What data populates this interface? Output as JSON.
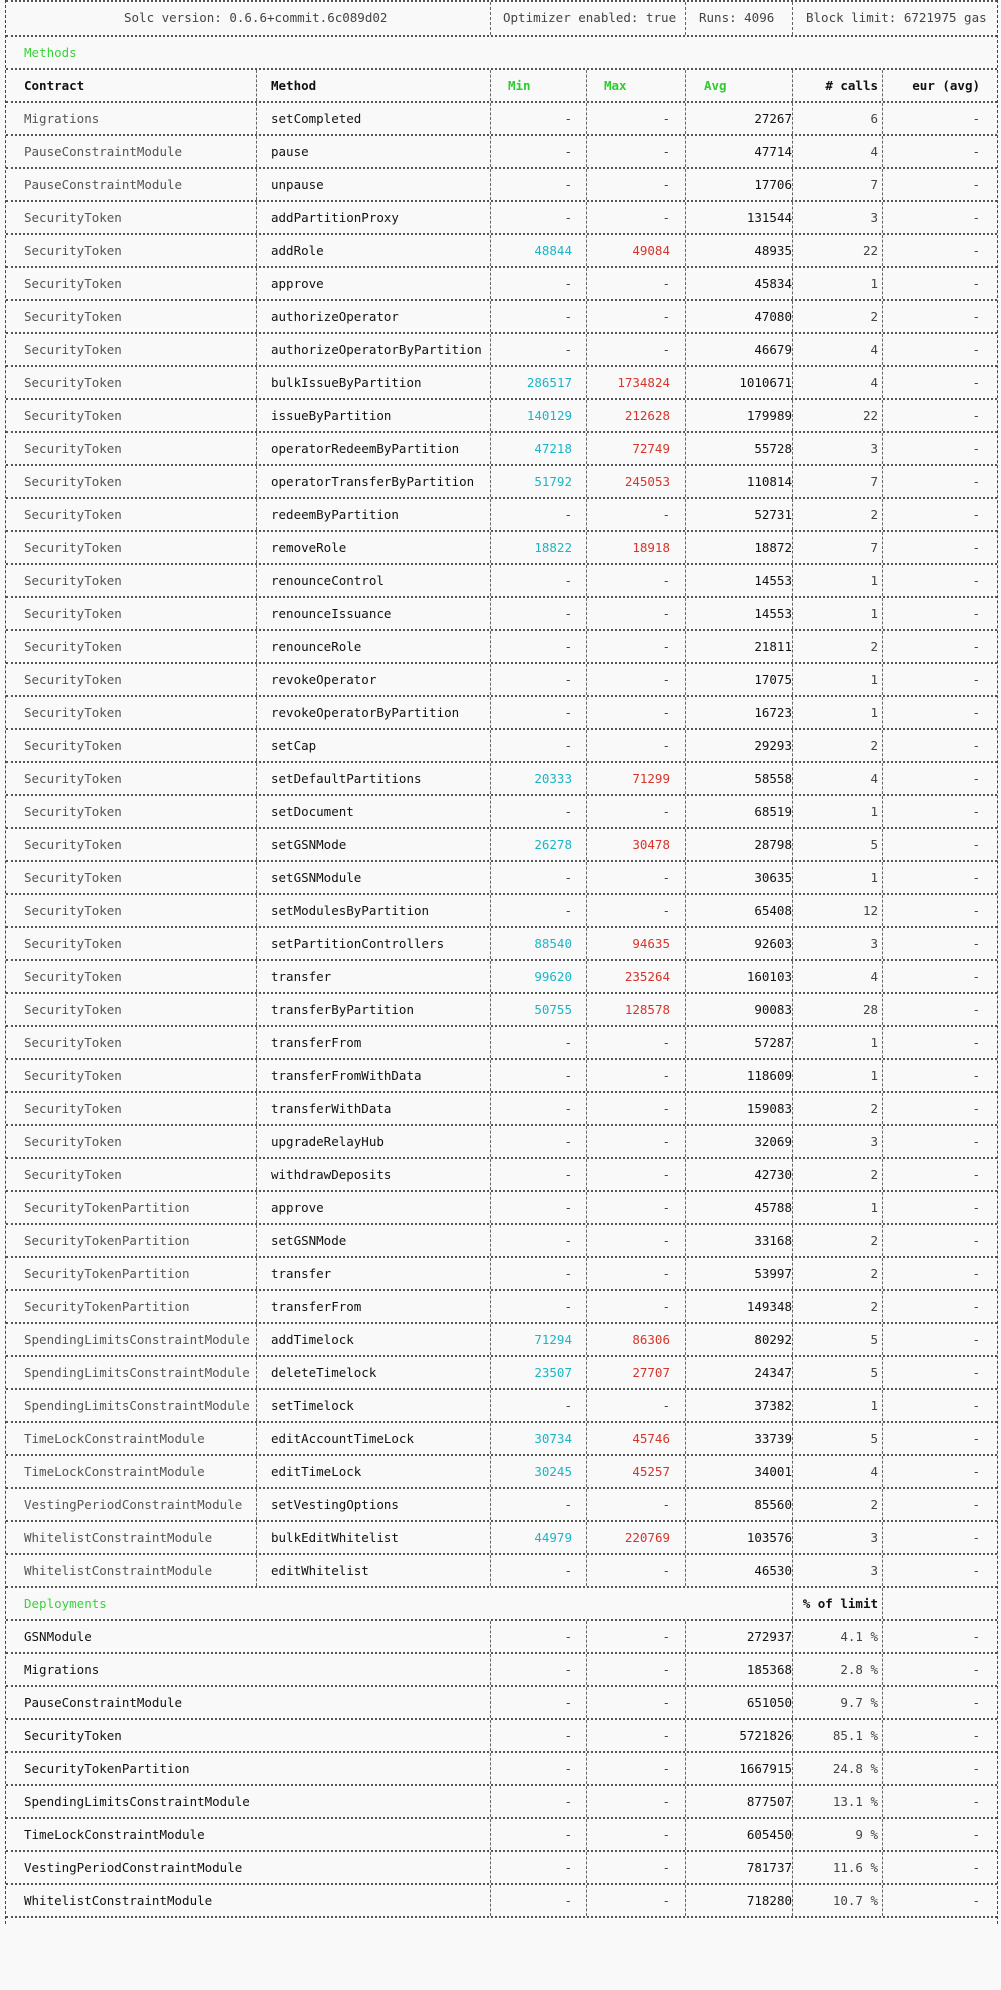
{
  "header": {
    "solc": "Solc version: 0.6.6+commit.6c089d02",
    "optimizer": "Optimizer enabled: true",
    "runs": "Runs: 4096",
    "block_limit": "Block limit: 6721975 gas"
  },
  "methods_section": {
    "title": "Methods"
  },
  "columns": {
    "contract": "Contract",
    "method": "Method",
    "min": "Min",
    "max": "Max",
    "avg": "Avg",
    "calls": "# calls",
    "eur": "eur (avg)"
  },
  "methods": [
    {
      "contract": "Migrations",
      "method": "setCompleted",
      "min": "-",
      "max": "-",
      "avg": "27267",
      "calls": "6",
      "eur": "-"
    },
    {
      "contract": "PauseConstraintModule",
      "method": "pause",
      "min": "-",
      "max": "-",
      "avg": "47714",
      "calls": "4",
      "eur": "-"
    },
    {
      "contract": "PauseConstraintModule",
      "method": "unpause",
      "min": "-",
      "max": "-",
      "avg": "17706",
      "calls": "7",
      "eur": "-"
    },
    {
      "contract": "SecurityToken",
      "method": "addPartitionProxy",
      "min": "-",
      "max": "-",
      "avg": "131544",
      "calls": "3",
      "eur": "-"
    },
    {
      "contract": "SecurityToken",
      "method": "addRole",
      "min": "48844",
      "max": "49084",
      "avg": "48935",
      "calls": "22",
      "eur": "-"
    },
    {
      "contract": "SecurityToken",
      "method": "approve",
      "min": "-",
      "max": "-",
      "avg": "45834",
      "calls": "1",
      "eur": "-"
    },
    {
      "contract": "SecurityToken",
      "method": "authorizeOperator",
      "min": "-",
      "max": "-",
      "avg": "47080",
      "calls": "2",
      "eur": "-"
    },
    {
      "contract": "SecurityToken",
      "method": "authorizeOperatorByPartition",
      "min": "-",
      "max": "-",
      "avg": "46679",
      "calls": "4",
      "eur": "-"
    },
    {
      "contract": "SecurityToken",
      "method": "bulkIssueByPartition",
      "min": "286517",
      "max": "1734824",
      "avg": "1010671",
      "calls": "4",
      "eur": "-"
    },
    {
      "contract": "SecurityToken",
      "method": "issueByPartition",
      "min": "140129",
      "max": "212628",
      "avg": "179989",
      "calls": "22",
      "eur": "-"
    },
    {
      "contract": "SecurityToken",
      "method": "operatorRedeemByPartition",
      "min": "47218",
      "max": "72749",
      "avg": "55728",
      "calls": "3",
      "eur": "-"
    },
    {
      "contract": "SecurityToken",
      "method": "operatorTransferByPartition",
      "min": "51792",
      "max": "245053",
      "avg": "110814",
      "calls": "7",
      "eur": "-"
    },
    {
      "contract": "SecurityToken",
      "method": "redeemByPartition",
      "min": "-",
      "max": "-",
      "avg": "52731",
      "calls": "2",
      "eur": "-"
    },
    {
      "contract": "SecurityToken",
      "method": "removeRole",
      "min": "18822",
      "max": "18918",
      "avg": "18872",
      "calls": "7",
      "eur": "-"
    },
    {
      "contract": "SecurityToken",
      "method": "renounceControl",
      "min": "-",
      "max": "-",
      "avg": "14553",
      "calls": "1",
      "eur": "-"
    },
    {
      "contract": "SecurityToken",
      "method": "renounceIssuance",
      "min": "-",
      "max": "-",
      "avg": "14553",
      "calls": "1",
      "eur": "-"
    },
    {
      "contract": "SecurityToken",
      "method": "renounceRole",
      "min": "-",
      "max": "-",
      "avg": "21811",
      "calls": "2",
      "eur": "-"
    },
    {
      "contract": "SecurityToken",
      "method": "revokeOperator",
      "min": "-",
      "max": "-",
      "avg": "17075",
      "calls": "1",
      "eur": "-"
    },
    {
      "contract": "SecurityToken",
      "method": "revokeOperatorByPartition",
      "min": "-",
      "max": "-",
      "avg": "16723",
      "calls": "1",
      "eur": "-"
    },
    {
      "contract": "SecurityToken",
      "method": "setCap",
      "min": "-",
      "max": "-",
      "avg": "29293",
      "calls": "2",
      "eur": "-"
    },
    {
      "contract": "SecurityToken",
      "method": "setDefaultPartitions",
      "min": "20333",
      "max": "71299",
      "avg": "58558",
      "calls": "4",
      "eur": "-"
    },
    {
      "contract": "SecurityToken",
      "method": "setDocument",
      "min": "-",
      "max": "-",
      "avg": "68519",
      "calls": "1",
      "eur": "-"
    },
    {
      "contract": "SecurityToken",
      "method": "setGSNMode",
      "min": "26278",
      "max": "30478",
      "avg": "28798",
      "calls": "5",
      "eur": "-"
    },
    {
      "contract": "SecurityToken",
      "method": "setGSNModule",
      "min": "-",
      "max": "-",
      "avg": "30635",
      "calls": "1",
      "eur": "-"
    },
    {
      "contract": "SecurityToken",
      "method": "setModulesByPartition",
      "min": "-",
      "max": "-",
      "avg": "65408",
      "calls": "12",
      "eur": "-"
    },
    {
      "contract": "SecurityToken",
      "method": "setPartitionControllers",
      "min": "88540",
      "max": "94635",
      "avg": "92603",
      "calls": "3",
      "eur": "-"
    },
    {
      "contract": "SecurityToken",
      "method": "transfer",
      "min": "99620",
      "max": "235264",
      "avg": "160103",
      "calls": "4",
      "eur": "-"
    },
    {
      "contract": "SecurityToken",
      "method": "transferByPartition",
      "min": "50755",
      "max": "128578",
      "avg": "90083",
      "calls": "28",
      "eur": "-"
    },
    {
      "contract": "SecurityToken",
      "method": "transferFrom",
      "min": "-",
      "max": "-",
      "avg": "57287",
      "calls": "1",
      "eur": "-"
    },
    {
      "contract": "SecurityToken",
      "method": "transferFromWithData",
      "min": "-",
      "max": "-",
      "avg": "118609",
      "calls": "1",
      "eur": "-"
    },
    {
      "contract": "SecurityToken",
      "method": "transferWithData",
      "min": "-",
      "max": "-",
      "avg": "159083",
      "calls": "2",
      "eur": "-"
    },
    {
      "contract": "SecurityToken",
      "method": "upgradeRelayHub",
      "min": "-",
      "max": "-",
      "avg": "32069",
      "calls": "3",
      "eur": "-"
    },
    {
      "contract": "SecurityToken",
      "method": "withdrawDeposits",
      "min": "-",
      "max": "-",
      "avg": "42730",
      "calls": "2",
      "eur": "-"
    },
    {
      "contract": "SecurityTokenPartition",
      "method": "approve",
      "min": "-",
      "max": "-",
      "avg": "45788",
      "calls": "1",
      "eur": "-"
    },
    {
      "contract": "SecurityTokenPartition",
      "method": "setGSNMode",
      "min": "-",
      "max": "-",
      "avg": "33168",
      "calls": "2",
      "eur": "-"
    },
    {
      "contract": "SecurityTokenPartition",
      "method": "transfer",
      "min": "-",
      "max": "-",
      "avg": "53997",
      "calls": "2",
      "eur": "-"
    },
    {
      "contract": "SecurityTokenPartition",
      "method": "transferFrom",
      "min": "-",
      "max": "-",
      "avg": "149348",
      "calls": "2",
      "eur": "-"
    },
    {
      "contract": "SpendingLimitsConstraintModule",
      "method": "addTimelock",
      "min": "71294",
      "max": "86306",
      "avg": "80292",
      "calls": "5",
      "eur": "-"
    },
    {
      "contract": "SpendingLimitsConstraintModule",
      "method": "deleteTimelock",
      "min": "23507",
      "max": "27707",
      "avg": "24347",
      "calls": "5",
      "eur": "-"
    },
    {
      "contract": "SpendingLimitsConstraintModule",
      "method": "setTimelock",
      "min": "-",
      "max": "-",
      "avg": "37382",
      "calls": "1",
      "eur": "-"
    },
    {
      "contract": "TimeLockConstraintModule",
      "method": "editAccountTimeLock",
      "min": "30734",
      "max": "45746",
      "avg": "33739",
      "calls": "5",
      "eur": "-"
    },
    {
      "contract": "TimeLockConstraintModule",
      "method": "editTimeLock",
      "min": "30245",
      "max": "45257",
      "avg": "34001",
      "calls": "4",
      "eur": "-"
    },
    {
      "contract": "VestingPeriodConstraintModule",
      "method": "setVestingOptions",
      "min": "-",
      "max": "-",
      "avg": "85560",
      "calls": "2",
      "eur": "-"
    },
    {
      "contract": "WhitelistConstraintModule",
      "method": "bulkEditWhitelist",
      "min": "44979",
      "max": "220769",
      "avg": "103576",
      "calls": "3",
      "eur": "-"
    },
    {
      "contract": "WhitelistConstraintModule",
      "method": "editWhitelist",
      "min": "-",
      "max": "-",
      "avg": "46530",
      "calls": "3",
      "eur": "-"
    }
  ],
  "deployments_section": {
    "title": "Deployments",
    "pct_header": "% of limit"
  },
  "deployments": [
    {
      "contract": "GSNModule",
      "min": "-",
      "max": "-",
      "avg": "272937",
      "pct": "4.1 %",
      "eur": "-"
    },
    {
      "contract": "Migrations",
      "min": "-",
      "max": "-",
      "avg": "185368",
      "pct": "2.8 %",
      "eur": "-"
    },
    {
      "contract": "PauseConstraintModule",
      "min": "-",
      "max": "-",
      "avg": "651050",
      "pct": "9.7 %",
      "eur": "-"
    },
    {
      "contract": "SecurityToken",
      "min": "-",
      "max": "-",
      "avg": "5721826",
      "pct": "85.1 %",
      "eur": "-"
    },
    {
      "contract": "SecurityTokenPartition",
      "min": "-",
      "max": "-",
      "avg": "1667915",
      "pct": "24.8 %",
      "eur": "-"
    },
    {
      "contract": "SpendingLimitsConstraintModule",
      "min": "-",
      "max": "-",
      "avg": "877507",
      "pct": "13.1 %",
      "eur": "-"
    },
    {
      "contract": "TimeLockConstraintModule",
      "min": "-",
      "max": "-",
      "avg": "605450",
      "pct": "9 %",
      "eur": "-"
    },
    {
      "contract": "VestingPeriodConstraintModule",
      "min": "-",
      "max": "-",
      "avg": "781737",
      "pct": "11.6 %",
      "eur": "-"
    },
    {
      "contract": "WhitelistConstraintModule",
      "min": "-",
      "max": "-",
      "avg": "718280",
      "pct": "10.7 %",
      "eur": "-"
    }
  ],
  "colors": {
    "header_green": "#2ecc2e",
    "min_cyan": "#1ab6c7",
    "max_red": "#d8342a"
  }
}
